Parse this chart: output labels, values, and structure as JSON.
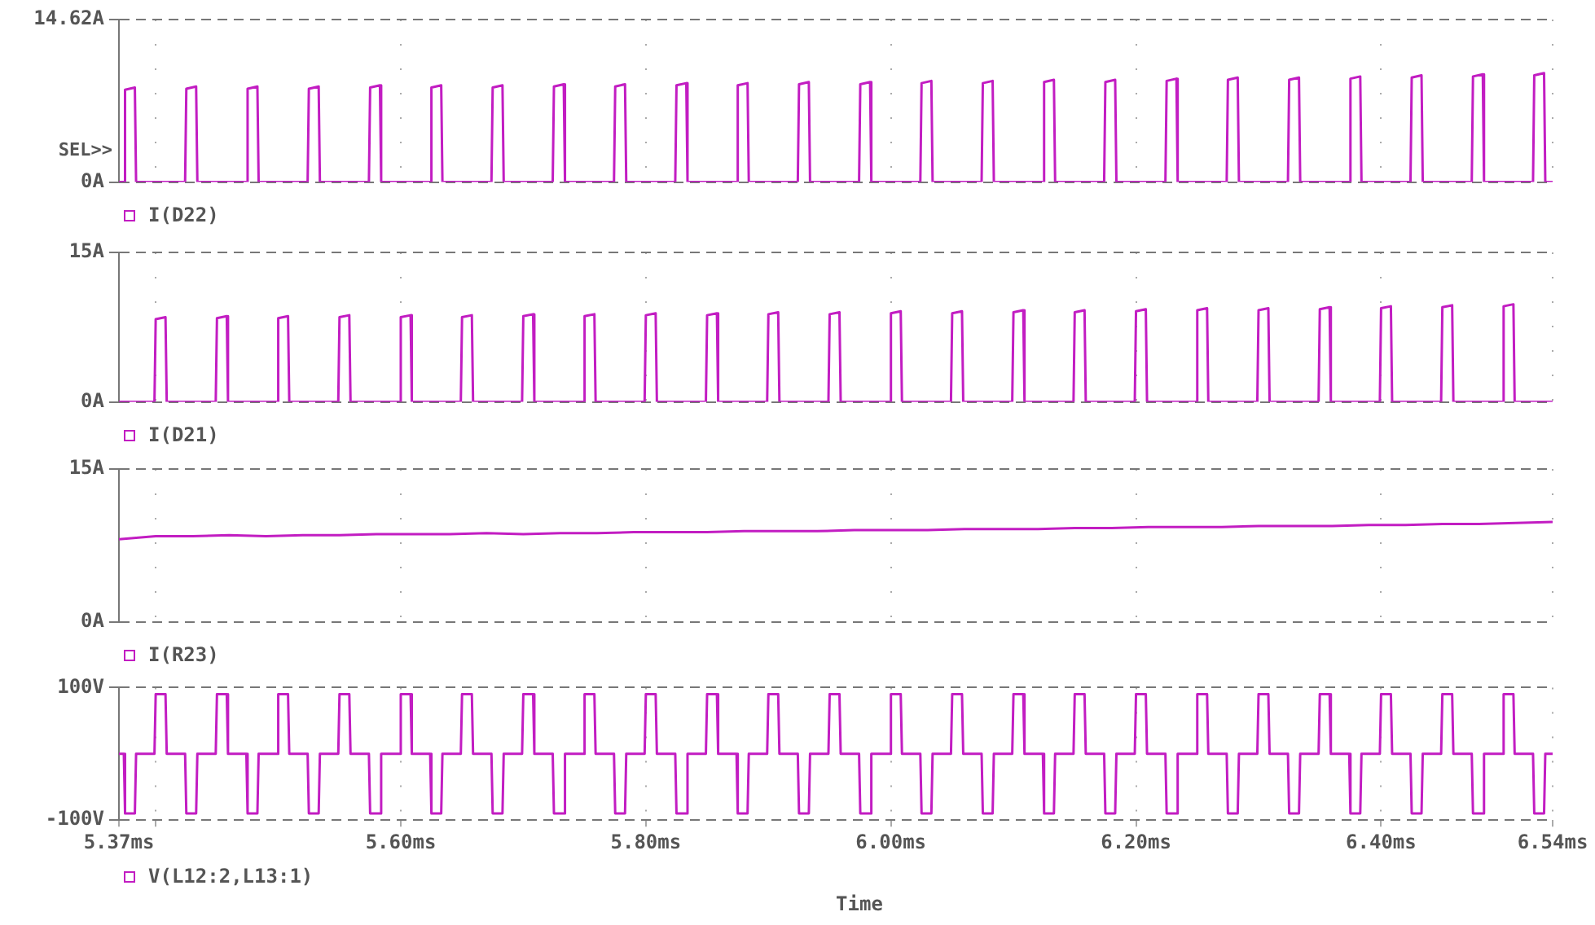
{
  "chart_data": [
    {
      "type": "line",
      "annotations": [
        "SEL>>"
      ],
      "legend": "bottom",
      "grid": true,
      "tick_labels": "y",
      "xlim": [
        5.37,
        6.54
      ],
      "xticks": [
        5.37,
        5.4,
        5.6,
        5.8,
        6.0,
        6.2,
        6.4,
        6.54
      ],
      "ylim": [
        0,
        14.62
      ],
      "yticks": [
        {
          "value": 0,
          "label": "0A"
        },
        {
          "value": 14.62,
          "label": "14.62A"
        }
      ],
      "x": [
        5.37,
        5.374,
        5.375,
        5.383,
        5.384,
        5.424,
        5.425,
        5.433,
        5.434,
        5.474,
        5.475,
        5.483,
        5.484,
        5.524,
        5.525,
        5.533,
        5.534,
        5.574,
        5.575,
        5.583,
        5.584,
        5.624,
        5.625,
        5.633,
        5.634,
        5.674,
        5.675,
        5.683,
        5.684,
        5.724,
        5.725,
        5.733,
        5.734,
        5.774,
        5.775,
        5.783,
        5.784,
        5.824,
        5.825,
        5.833,
        5.834,
        5.874,
        5.875,
        5.883,
        5.884,
        5.924,
        5.925,
        5.933,
        5.934,
        5.974,
        5.975,
        5.983,
        5.984,
        6.024,
        6.025,
        6.033,
        6.034,
        6.074,
        6.075,
        6.083,
        6.084,
        6.124,
        6.125,
        6.133,
        6.134,
        6.174,
        6.175,
        6.183,
        6.184,
        6.224,
        6.225,
        6.233,
        6.234,
        6.274,
        6.275,
        6.283,
        6.284,
        6.324,
        6.325,
        6.333,
        6.334,
        6.374,
        6.375,
        6.383,
        6.384,
        6.424,
        6.425,
        6.433,
        6.434,
        6.474,
        6.475,
        6.483,
        6.484,
        6.524,
        6.525,
        6.533,
        6.534,
        6.54
      ],
      "series": [
        {
          "name": "I(D22)",
          "color": "#c21dc2",
          "values": [
            0,
            0,
            8.3,
            8.5,
            0,
            0,
            8.4,
            8.6,
            0,
            0,
            8.4,
            8.6,
            0,
            0,
            8.4,
            8.6,
            0,
            0,
            8.5,
            8.7,
            0,
            0,
            8.5,
            8.7,
            0,
            0,
            8.5,
            8.7,
            0,
            0,
            8.6,
            8.8,
            0,
            0,
            8.6,
            8.8,
            0,
            0,
            8.7,
            8.9,
            0,
            0,
            8.7,
            8.9,
            0,
            0,
            8.8,
            9.0,
            0,
            0,
            8.8,
            9.0,
            0,
            0,
            8.9,
            9.1,
            0,
            0,
            8.9,
            9.1,
            0,
            0,
            9.0,
            9.2,
            0,
            0,
            9.0,
            9.2,
            0,
            0,
            9.1,
            9.3,
            0,
            0,
            9.2,
            9.4,
            0,
            0,
            9.2,
            9.4,
            0,
            0,
            9.3,
            9.5,
            0,
            0,
            9.4,
            9.6,
            0,
            0,
            9.5,
            9.7,
            0,
            0,
            9.6,
            9.8,
            0,
            0
          ]
        }
      ]
    },
    {
      "type": "line",
      "legend": "bottom",
      "grid": true,
      "tick_labels": "y",
      "xlim": [
        5.37,
        6.54
      ],
      "xticks": [
        5.37,
        5.4,
        5.6,
        5.8,
        6.0,
        6.2,
        6.4,
        6.54
      ],
      "ylim": [
        0,
        15
      ],
      "yticks": [
        {
          "value": 0,
          "label": "0A"
        },
        {
          "value": 15,
          "label": "15A"
        }
      ],
      "x": [
        5.37,
        5.399,
        5.4,
        5.408,
        5.409,
        5.449,
        5.45,
        5.458,
        5.459,
        5.499,
        5.5,
        5.508,
        5.509,
        5.549,
        5.55,
        5.558,
        5.559,
        5.599,
        5.6,
        5.608,
        5.609,
        5.649,
        5.65,
        5.658,
        5.659,
        5.699,
        5.7,
        5.708,
        5.709,
        5.749,
        5.75,
        5.758,
        5.759,
        5.799,
        5.8,
        5.808,
        5.809,
        5.849,
        5.85,
        5.858,
        5.859,
        5.899,
        5.9,
        5.908,
        5.909,
        5.949,
        5.95,
        5.958,
        5.959,
        5.999,
        6.0,
        6.008,
        6.009,
        6.049,
        6.05,
        6.058,
        6.059,
        6.099,
        6.1,
        6.108,
        6.109,
        6.149,
        6.15,
        6.158,
        6.159,
        6.199,
        6.2,
        6.208,
        6.209,
        6.249,
        6.25,
        6.258,
        6.259,
        6.299,
        6.3,
        6.308,
        6.309,
        6.349,
        6.35,
        6.358,
        6.359,
        6.399,
        6.4,
        6.408,
        6.409,
        6.449,
        6.45,
        6.458,
        6.459,
        6.499,
        6.5,
        6.508,
        6.509,
        6.54
      ],
      "series": [
        {
          "name": "I(D21)",
          "color": "#c21dc2",
          "values": [
            0,
            0,
            8.3,
            8.5,
            0,
            0,
            8.4,
            8.6,
            0,
            0,
            8.4,
            8.6,
            0,
            0,
            8.5,
            8.7,
            0,
            0,
            8.5,
            8.7,
            0,
            0,
            8.5,
            8.7,
            0,
            0,
            8.6,
            8.8,
            0,
            0,
            8.6,
            8.8,
            0,
            0,
            8.7,
            8.9,
            0,
            0,
            8.7,
            8.9,
            0,
            0,
            8.8,
            9.0,
            0,
            0,
            8.8,
            9.0,
            0,
            0,
            8.9,
            9.1,
            0,
            0,
            8.9,
            9.1,
            0,
            0,
            9.0,
            9.2,
            0,
            0,
            9.0,
            9.2,
            0,
            0,
            9.1,
            9.3,
            0,
            0,
            9.2,
            9.4,
            0,
            0,
            9.2,
            9.4,
            0,
            0,
            9.3,
            9.5,
            0,
            0,
            9.4,
            9.6,
            0,
            0,
            9.5,
            9.7,
            0,
            0,
            9.6,
            9.8,
            0,
            0
          ]
        }
      ]
    },
    {
      "type": "line",
      "legend": "bottom",
      "grid": true,
      "tick_labels": "y",
      "xlim": [
        5.37,
        6.54
      ],
      "xticks": [
        5.37,
        5.4,
        5.6,
        5.8,
        6.0,
        6.2,
        6.4,
        6.54
      ],
      "ylim": [
        0,
        15
      ],
      "yticks": [
        {
          "value": 0,
          "label": "0A"
        },
        {
          "value": 15,
          "label": "15A"
        }
      ],
      "x": [
        5.37,
        5.4,
        5.43,
        5.46,
        5.49,
        5.52,
        5.55,
        5.58,
        5.61,
        5.64,
        5.67,
        5.7,
        5.73,
        5.76,
        5.79,
        5.82,
        5.85,
        5.88,
        5.91,
        5.94,
        5.97,
        6.0,
        6.03,
        6.06,
        6.09,
        6.12,
        6.15,
        6.18,
        6.21,
        6.24,
        6.27,
        6.3,
        6.33,
        6.36,
        6.39,
        6.42,
        6.45,
        6.48,
        6.51,
        6.54
      ],
      "series": [
        {
          "name": "I(R23)",
          "color": "#c21dc2",
          "values": [
            8.1,
            8.4,
            8.4,
            8.5,
            8.4,
            8.5,
            8.5,
            8.6,
            8.6,
            8.6,
            8.7,
            8.6,
            8.7,
            8.7,
            8.8,
            8.8,
            8.8,
            8.9,
            8.9,
            8.9,
            9.0,
            9.0,
            9.0,
            9.1,
            9.1,
            9.1,
            9.2,
            9.2,
            9.3,
            9.3,
            9.3,
            9.4,
            9.4,
            9.4,
            9.5,
            9.5,
            9.6,
            9.6,
            9.7,
            9.8
          ]
        }
      ]
    },
    {
      "type": "line",
      "legend": "bottom",
      "grid": true,
      "xlabel": "Time",
      "xlim": [
        5.37,
        6.54
      ],
      "xticks": [
        {
          "value": 5.37,
          "label": "5.37ms"
        },
        {
          "value": 5.4,
          "label": null
        },
        {
          "value": 5.6,
          "label": "5.60ms"
        },
        {
          "value": 5.8,
          "label": "5.80ms"
        },
        {
          "value": 6.0,
          "label": "6.00ms"
        },
        {
          "value": 6.2,
          "label": "6.20ms"
        },
        {
          "value": 6.4,
          "label": "6.40ms"
        },
        {
          "value": 6.54,
          "label": "6.54ms"
        }
      ],
      "ylim": [
        -100,
        100
      ],
      "yticks": [
        {
          "value": -100,
          "label": "-100V"
        },
        {
          "value": 100,
          "label": "100V"
        }
      ],
      "x": [
        5.37,
        5.374,
        5.375,
        5.383,
        5.384,
        5.399,
        5.4,
        5.408,
        5.409,
        5.424,
        5.425,
        5.433,
        5.434,
        5.449,
        5.45,
        5.458,
        5.459,
        5.474,
        5.475,
        5.483,
        5.484,
        5.499,
        5.5,
        5.508,
        5.509,
        5.524,
        5.525,
        5.533,
        5.534,
        5.549,
        5.55,
        5.558,
        5.559,
        5.574,
        5.575,
        5.583,
        5.584,
        5.599,
        5.6,
        5.608,
        5.609,
        5.624,
        5.625,
        5.633,
        5.634,
        5.649,
        5.65,
        5.658,
        5.659,
        5.674,
        5.675,
        5.683,
        5.684,
        5.699,
        5.7,
        5.708,
        5.709,
        5.724,
        5.725,
        5.733,
        5.734,
        5.749,
        5.75,
        5.758,
        5.759,
        5.774,
        5.775,
        5.783,
        5.784,
        5.799,
        5.8,
        5.808,
        5.809,
        5.824,
        5.825,
        5.833,
        5.834,
        5.849,
        5.85,
        5.858,
        5.859,
        5.874,
        5.875,
        5.883,
        5.884,
        5.899,
        5.9,
        5.908,
        5.909,
        5.924,
        5.925,
        5.933,
        5.934,
        5.949,
        5.95,
        5.958,
        5.959,
        5.974,
        5.975,
        5.983,
        5.984,
        5.999,
        6.0,
        6.008,
        6.009,
        6.024,
        6.025,
        6.033,
        6.034,
        6.049,
        6.05,
        6.058,
        6.059,
        6.074,
        6.075,
        6.083,
        6.084,
        6.099,
        6.1,
        6.108,
        6.109,
        6.124,
        6.125,
        6.133,
        6.134,
        6.149,
        6.15,
        6.158,
        6.159,
        6.174,
        6.175,
        6.183,
        6.184,
        6.199,
        6.2,
        6.208,
        6.209,
        6.224,
        6.225,
        6.233,
        6.234,
        6.249,
        6.25,
        6.258,
        6.259,
        6.274,
        6.275,
        6.283,
        6.284,
        6.299,
        6.3,
        6.308,
        6.309,
        6.324,
        6.325,
        6.333,
        6.334,
        6.349,
        6.35,
        6.358,
        6.359,
        6.374,
        6.375,
        6.383,
        6.384,
        6.399,
        6.4,
        6.408,
        6.409,
        6.424,
        6.425,
        6.433,
        6.434,
        6.449,
        6.45,
        6.458,
        6.459,
        6.474,
        6.475,
        6.483,
        6.484,
        6.499,
        6.5,
        6.508,
        6.509,
        6.524,
        6.525,
        6.533,
        6.534,
        6.54
      ],
      "series": [
        {
          "name": "V(L12:2,L13:1)",
          "color": "#c21dc2",
          "values": [
            0,
            0,
            -90,
            -90,
            0,
            0,
            90,
            90,
            0,
            0,
            -90,
            -90,
            0,
            0,
            90,
            90,
            0,
            0,
            -90,
            -90,
            0,
            0,
            90,
            90,
            0,
            0,
            -90,
            -90,
            0,
            0,
            90,
            90,
            0,
            0,
            -90,
            -90,
            0,
            0,
            90,
            90,
            0,
            0,
            -90,
            -90,
            0,
            0,
            90,
            90,
            0,
            0,
            -90,
            -90,
            0,
            0,
            90,
            90,
            0,
            0,
            -90,
            -90,
            0,
            0,
            90,
            90,
            0,
            0,
            -90,
            -90,
            0,
            0,
            90,
            90,
            0,
            0,
            -90,
            -90,
            0,
            0,
            90,
            90,
            0,
            0,
            -90,
            -90,
            0,
            0,
            90,
            90,
            0,
            0,
            -90,
            -90,
            0,
            0,
            90,
            90,
            0,
            0,
            -90,
            -90,
            0,
            0,
            90,
            90,
            0,
            0,
            -90,
            -90,
            0,
            0,
            90,
            90,
            0,
            0,
            -90,
            -90,
            0,
            0,
            90,
            90,
            0,
            0,
            -90,
            -90,
            0,
            0,
            90,
            90,
            0,
            0,
            -90,
            -90,
            0,
            0,
            90,
            90,
            0,
            0,
            -90,
            -90,
            0,
            0,
            90,
            90,
            0,
            0,
            -90,
            -90,
            0,
            0,
            90,
            90,
            0,
            0,
            -90,
            -90,
            0,
            0,
            90,
            90,
            0,
            0,
            -90,
            -90,
            0,
            0,
            90,
            90,
            0,
            0,
            -90,
            -90,
            0,
            0,
            90,
            90,
            0,
            0,
            -90,
            -90,
            0,
            0,
            90,
            90,
            0,
            0,
            -90,
            -90,
            0,
            0
          ]
        }
      ]
    }
  ]
}
